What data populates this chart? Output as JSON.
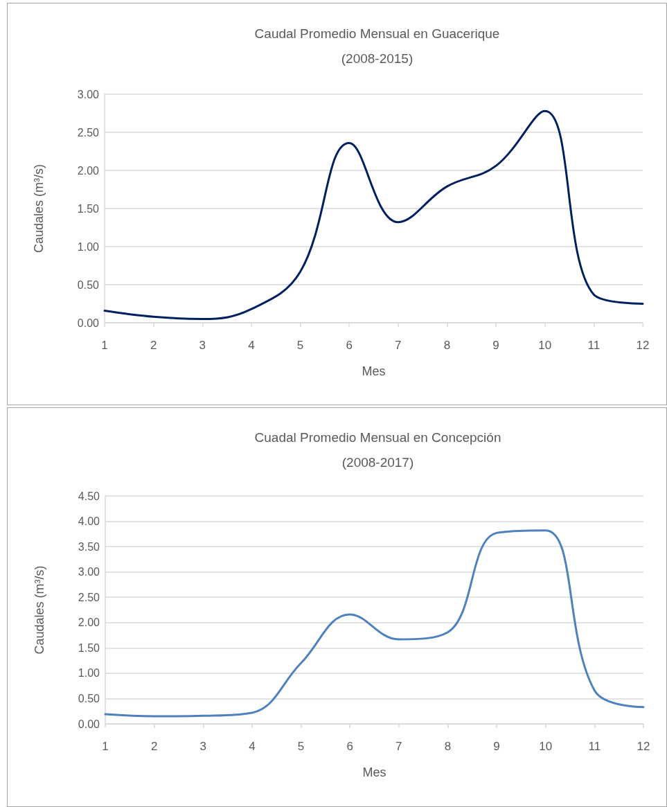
{
  "chart_data": [
    {
      "type": "line",
      "title": "Caudal Promedio Mensual en Guacerique\n(2008-2015)",
      "xlabel": "Mes",
      "ylabel": "Caudales (m³/s)",
      "x": [
        1,
        2,
        3,
        4,
        5,
        6,
        7,
        8,
        9,
        10,
        11,
        12
      ],
      "series": [
        {
          "color": "#002060",
          "values": [
            0.16,
            0.08,
            0.05,
            0.18,
            0.67,
            2.36,
            1.32,
            1.79,
            2.06,
            2.78,
            0.37,
            0.25
          ]
        }
      ],
      "xlim": [
        1,
        12
      ],
      "xticks": [
        1,
        2,
        3,
        4,
        5,
        6,
        7,
        8,
        9,
        10,
        11,
        12
      ],
      "ylim": [
        0,
        3
      ],
      "yticks": [
        {
          "value": 0,
          "label": "0.00"
        },
        {
          "value": 0.5,
          "label": "0.50"
        },
        {
          "value": 1,
          "label": "1.00"
        },
        {
          "value": 1.5,
          "label": "1.50"
        },
        {
          "value": 2,
          "label": "2.00"
        },
        {
          "value": 2.5,
          "label": "2.50"
        },
        {
          "value": 3,
          "label": "3.00"
        }
      ],
      "grid": "y"
    },
    {
      "type": "line",
      "title": "Cuadal Promedio Mensual en Concepción\n(2008-2017)",
      "xlabel": "Mes",
      "ylabel": "Caudales (m³/s)",
      "x": [
        1,
        2,
        3,
        4,
        5,
        6,
        7,
        8,
        9,
        10,
        11,
        12
      ],
      "series": [
        {
          "color": "#4f81bd",
          "values": [
            0.19,
            0.15,
            0.16,
            0.22,
            1.2,
            2.16,
            1.67,
            1.81,
            3.77,
            3.82,
            0.66,
            0.33
          ]
        }
      ],
      "xlim": [
        1,
        12
      ],
      "xticks": [
        1,
        2,
        3,
        4,
        5,
        6,
        7,
        8,
        9,
        10,
        11,
        12
      ],
      "ylim": [
        0,
        4.5
      ],
      "yticks": [
        {
          "value": 0,
          "label": "0.00"
        },
        {
          "value": 0.5,
          "label": "0.50"
        },
        {
          "value": 1,
          "label": "1.00"
        },
        {
          "value": 1.5,
          "label": "1.50"
        },
        {
          "value": 2,
          "label": "2.00"
        },
        {
          "value": 2.5,
          "label": "2.50"
        },
        {
          "value": 3,
          "label": "3.00"
        },
        {
          "value": 3.5,
          "label": "3.50"
        },
        {
          "value": 4,
          "label": "4.00"
        },
        {
          "value": 4.5,
          "label": "4.50"
        }
      ],
      "grid": "y"
    }
  ]
}
